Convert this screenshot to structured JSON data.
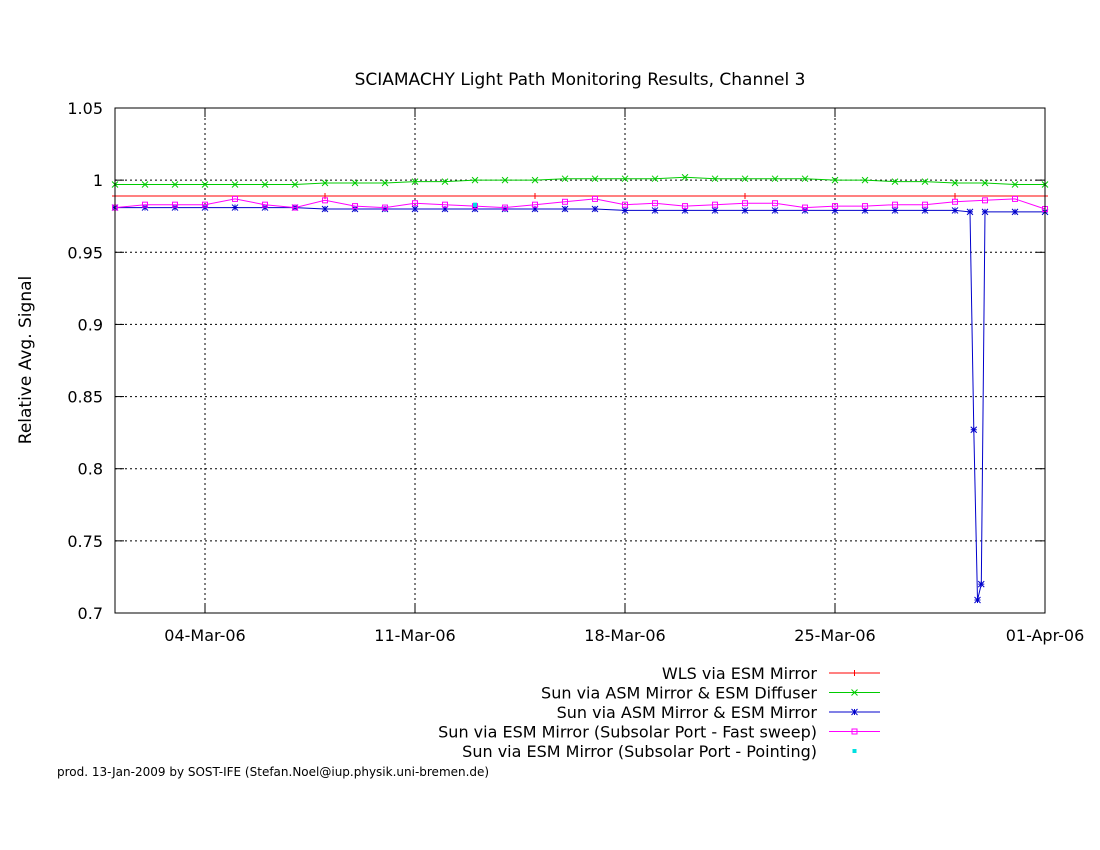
{
  "chart_data": {
    "type": "line",
    "title": "SCIAMACHY Light Path Monitoring Results, Channel 3",
    "xlabel": "",
    "ylabel": "Relative Avg. Signal",
    "xlim": [
      "2006-03-01",
      "2006-04-01"
    ],
    "ylim": [
      0.7,
      1.05
    ],
    "x_ticks": [
      "04-Mar-06",
      "11-Mar-06",
      "18-Mar-06",
      "25-Mar-06",
      "01-Apr-06"
    ],
    "y_ticks": [
      "0.7",
      "0.75",
      "0.8",
      "0.85",
      "0.9",
      "0.95",
      "1",
      "1.05"
    ],
    "grid": true,
    "legend_position": "bottom-right",
    "series": [
      {
        "name": "WLS via ESM Mirror",
        "color": "#ff0000",
        "marker": "plus",
        "points": [
          [
            "2006-03-01",
            0.989
          ],
          [
            "2006-03-08",
            0.989
          ],
          [
            "2006-03-15",
            0.989
          ],
          [
            "2006-03-22",
            0.989
          ],
          [
            "2006-03-29",
            0.989
          ],
          [
            "2006-04-01",
            0.989
          ]
        ]
      },
      {
        "name": "Sun via ASM Mirror & ESM Diffuser",
        "color": "#00cc00",
        "marker": "cross",
        "points": [
          [
            "2006-03-01",
            0.997
          ],
          [
            "2006-03-02",
            0.997
          ],
          [
            "2006-03-03",
            0.997
          ],
          [
            "2006-03-04",
            0.997
          ],
          [
            "2006-03-05",
            0.997
          ],
          [
            "2006-03-06",
            0.997
          ],
          [
            "2006-03-07",
            0.997
          ],
          [
            "2006-03-08",
            0.998
          ],
          [
            "2006-03-09",
            0.998
          ],
          [
            "2006-03-10",
            0.998
          ],
          [
            "2006-03-11",
            0.999
          ],
          [
            "2006-03-12",
            0.999
          ],
          [
            "2006-03-13",
            1.0
          ],
          [
            "2006-03-14",
            1.0
          ],
          [
            "2006-03-15",
            1.0
          ],
          [
            "2006-03-16",
            1.001
          ],
          [
            "2006-03-17",
            1.001
          ],
          [
            "2006-03-18",
            1.001
          ],
          [
            "2006-03-19",
            1.001
          ],
          [
            "2006-03-20",
            1.002
          ],
          [
            "2006-03-21",
            1.001
          ],
          [
            "2006-03-22",
            1.001
          ],
          [
            "2006-03-23",
            1.001
          ],
          [
            "2006-03-24",
            1.001
          ],
          [
            "2006-03-25",
            1.0
          ],
          [
            "2006-03-26",
            1.0
          ],
          [
            "2006-03-27",
            0.999
          ],
          [
            "2006-03-28",
            0.999
          ],
          [
            "2006-03-29",
            0.998
          ],
          [
            "2006-03-30",
            0.998
          ],
          [
            "2006-03-31",
            0.997
          ],
          [
            "2006-04-01",
            0.997
          ]
        ]
      },
      {
        "name": "Sun via ASM Mirror & ESM Mirror",
        "color": "#0000cc",
        "marker": "star",
        "points": [
          [
            "2006-03-01",
            0.981
          ],
          [
            "2006-03-02",
            0.981
          ],
          [
            "2006-03-03",
            0.981
          ],
          [
            "2006-03-04",
            0.981
          ],
          [
            "2006-03-05",
            0.981
          ],
          [
            "2006-03-06",
            0.981
          ],
          [
            "2006-03-07",
            0.981
          ],
          [
            "2006-03-08",
            0.98
          ],
          [
            "2006-03-09",
            0.98
          ],
          [
            "2006-03-10",
            0.98
          ],
          [
            "2006-03-11",
            0.98
          ],
          [
            "2006-03-12",
            0.98
          ],
          [
            "2006-03-13",
            0.98
          ],
          [
            "2006-03-14",
            0.98
          ],
          [
            "2006-03-15",
            0.98
          ],
          [
            "2006-03-16",
            0.98
          ],
          [
            "2006-03-17",
            0.98
          ],
          [
            "2006-03-18",
            0.979
          ],
          [
            "2006-03-19",
            0.979
          ],
          [
            "2006-03-20",
            0.979
          ],
          [
            "2006-03-21",
            0.979
          ],
          [
            "2006-03-22",
            0.979
          ],
          [
            "2006-03-23",
            0.979
          ],
          [
            "2006-03-24",
            0.979
          ],
          [
            "2006-03-25",
            0.979
          ],
          [
            "2006-03-26",
            0.979
          ],
          [
            "2006-03-27",
            0.979
          ],
          [
            "2006-03-28",
            0.979
          ],
          [
            "2006-03-29",
            0.979
          ],
          [
            "2006-03-29T12:00",
            0.978
          ],
          [
            "2006-03-29T15:00",
            0.827
          ],
          [
            "2006-03-29T18:00",
            0.709
          ],
          [
            "2006-03-29T21:00",
            0.72
          ],
          [
            "2006-03-30",
            0.978
          ],
          [
            "2006-03-31",
            0.978
          ],
          [
            "2006-04-01",
            0.978
          ]
        ]
      },
      {
        "name": "Sun via ESM Mirror (Subsolar Port - Fast sweep)",
        "color": "#ff00ff",
        "marker": "square",
        "points": [
          [
            "2006-03-01",
            0.981
          ],
          [
            "2006-03-02",
            0.983
          ],
          [
            "2006-03-03",
            0.983
          ],
          [
            "2006-03-04",
            0.983
          ],
          [
            "2006-03-05",
            0.987
          ],
          [
            "2006-03-06",
            0.983
          ],
          [
            "2006-03-07",
            0.981
          ],
          [
            "2006-03-08",
            0.986
          ],
          [
            "2006-03-09",
            0.982
          ],
          [
            "2006-03-10",
            0.981
          ],
          [
            "2006-03-11",
            0.984
          ],
          [
            "2006-03-12",
            0.983
          ],
          [
            "2006-03-13",
            0.982
          ],
          [
            "2006-03-14",
            0.981
          ],
          [
            "2006-03-15",
            0.983
          ],
          [
            "2006-03-16",
            0.985
          ],
          [
            "2006-03-17",
            0.987
          ],
          [
            "2006-03-18",
            0.983
          ],
          [
            "2006-03-19",
            0.984
          ],
          [
            "2006-03-20",
            0.982
          ],
          [
            "2006-03-21",
            0.983
          ],
          [
            "2006-03-22",
            0.984
          ],
          [
            "2006-03-23",
            0.984
          ],
          [
            "2006-03-24",
            0.981
          ],
          [
            "2006-03-25",
            0.982
          ],
          [
            "2006-03-26",
            0.982
          ],
          [
            "2006-03-27",
            0.983
          ],
          [
            "2006-03-28",
            0.983
          ],
          [
            "2006-03-29",
            0.985
          ],
          [
            "2006-03-30",
            0.986
          ],
          [
            "2006-03-31",
            0.987
          ],
          [
            "2006-04-01",
            0.98
          ]
        ]
      },
      {
        "name": "Sun via ESM Mirror (Subsolar Port - Pointing)",
        "color": "#00e0e0",
        "marker": "dot",
        "points": [
          [
            "2006-03-13",
            0.983
          ]
        ]
      }
    ]
  },
  "footer": {
    "text": "prod. 13-Jan-2009 by SOST-IFE (Stefan.Noel@iup.physik.uni-bremen.de)"
  }
}
